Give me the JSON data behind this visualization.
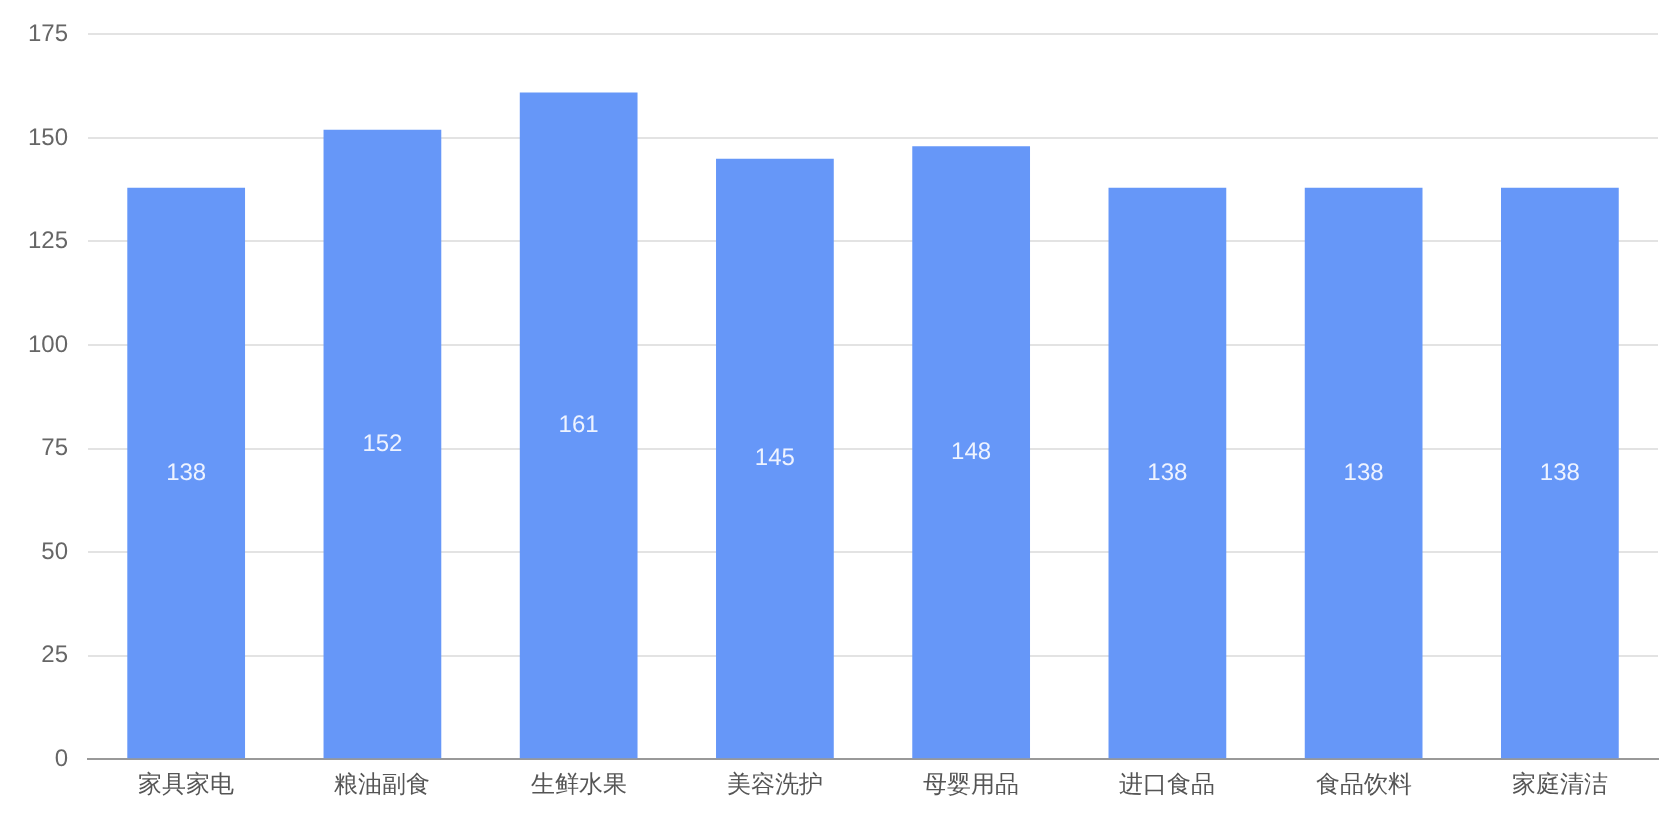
{
  "chart_data": {
    "type": "bar",
    "categories": [
      "家具家电",
      "粮油副食",
      "生鲜水果",
      "美容洗护",
      "母婴用品",
      "进口食品",
      "食品饮料",
      "家庭清洁"
    ],
    "values": [
      138,
      152,
      161,
      145,
      148,
      138,
      138,
      138
    ],
    "color": "#6697f8",
    "ylim": [
      0,
      175
    ],
    "yticks": [
      0,
      25,
      50,
      75,
      100,
      125,
      150,
      175
    ],
    "grid": "y",
    "data_labels": true,
    "legend": false
  }
}
